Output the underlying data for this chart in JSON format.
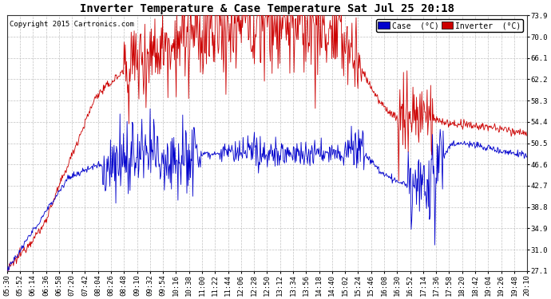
{
  "title": "Inverter Temperature & Case Temperature Sat Jul 25 20:18",
  "copyright": "Copyright 2015 Cartronics.com",
  "legend_case": "Case  (°C)",
  "legend_inverter": "Inverter  (°C)",
  "yticks": [
    27.1,
    31.0,
    34.9,
    38.8,
    42.7,
    46.6,
    50.5,
    54.4,
    58.3,
    62.2,
    66.1,
    70.0,
    73.9
  ],
  "ymin": 27.1,
  "ymax": 73.9,
  "case_color": "#0000cc",
  "inverter_color": "#cc0000",
  "background_color": "#ffffff",
  "grid_color": "#bbbbbb",
  "title_fontsize": 10,
  "tick_fontsize": 6.5,
  "copyright_fontsize": 6.5,
  "legend_fontsize": 7,
  "xtick_labels": [
    "05:30",
    "05:52",
    "06:14",
    "06:36",
    "06:58",
    "07:20",
    "07:42",
    "08:04",
    "08:26",
    "08:48",
    "09:10",
    "09:32",
    "09:54",
    "10:16",
    "10:38",
    "11:00",
    "11:22",
    "11:44",
    "12:06",
    "12:28",
    "12:50",
    "13:12",
    "13:34",
    "13:56",
    "14:18",
    "14:40",
    "15:02",
    "15:24",
    "15:46",
    "16:08",
    "16:30",
    "16:52",
    "17:14",
    "17:36",
    "17:58",
    "18:20",
    "18:42",
    "19:04",
    "19:26",
    "19:48",
    "20:10"
  ]
}
